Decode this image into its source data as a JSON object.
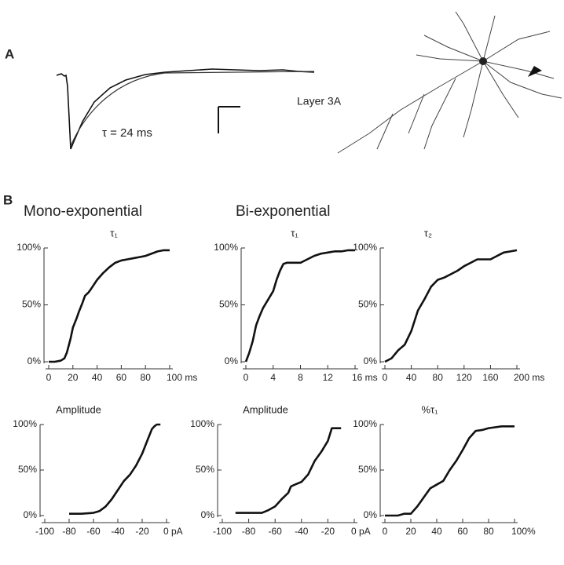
{
  "figure": {
    "panel_a": "A",
    "panel_b": "B",
    "mono_heading": "Mono-exponential",
    "bi_heading": "Bi-exponential",
    "tau_label": "τ = 24 ms",
    "layer_label": "Layer 3A"
  },
  "chart_data": [
    {
      "type": "line",
      "title": "τ₁",
      "color": "#111111",
      "x": [
        0,
        5,
        10,
        13,
        15,
        18,
        20,
        23,
        25,
        28,
        30,
        33,
        35,
        40,
        45,
        50,
        55,
        60,
        65,
        70,
        75,
        80,
        85,
        90,
        95,
        100
      ],
      "series": [
        {
          "values": [
            0,
            0,
            1,
            3,
            8,
            20,
            30,
            38,
            44,
            52,
            58,
            61,
            64,
            72,
            78,
            83,
            87,
            89,
            90,
            91,
            92,
            93,
            95,
            97,
            98,
            98
          ]
        }
      ],
      "xlim": [
        0,
        100
      ],
      "ylim": [
        0,
        100
      ],
      "xticks": [
        0,
        20,
        40,
        60,
        80,
        {
          "value": 100,
          "label": "100 ms"
        }
      ],
      "yticks": [
        {
          "value": 0,
          "label": "0%"
        },
        {
          "value": 50,
          "label": "50%"
        },
        {
          "value": 100,
          "label": "100%"
        }
      ]
    },
    {
      "type": "line",
      "title": "τ₁",
      "color": "#111111",
      "x": [
        0,
        0.5,
        1,
        1.5,
        2,
        2.5,
        3,
        3.5,
        4,
        4.5,
        5,
        5.5,
        6,
        6.5,
        7,
        8,
        9,
        10,
        11,
        12,
        13,
        14,
        15,
        16
      ],
      "series": [
        {
          "values": [
            0,
            8,
            18,
            32,
            40,
            47,
            52,
            57,
            62,
            72,
            80,
            86,
            87,
            87,
            87,
            87,
            90,
            93,
            95,
            96,
            97,
            97,
            98,
            98
          ]
        }
      ],
      "xlim": [
        0,
        16
      ],
      "ylim": [
        0,
        100
      ],
      "xticks": [
        0,
        4,
        8,
        12,
        {
          "value": 16,
          "label": "16 ms"
        }
      ],
      "yticks": [
        {
          "value": 0,
          "label": "0%"
        },
        {
          "value": 50,
          "label": "50%"
        },
        {
          "value": 100,
          "label": "100%"
        }
      ]
    },
    {
      "type": "line",
      "title": "τ₂",
      "color": "#111111",
      "x": [
        0,
        10,
        20,
        30,
        40,
        50,
        60,
        70,
        80,
        90,
        100,
        110,
        120,
        130,
        140,
        150,
        160,
        170,
        180,
        190,
        200
      ],
      "series": [
        {
          "values": [
            0,
            3,
            10,
            15,
            27,
            45,
            55,
            66,
            72,
            74,
            77,
            80,
            84,
            87,
            90,
            90,
            90,
            93,
            96,
            97,
            98
          ]
        }
      ],
      "xlim": [
        0,
        200
      ],
      "ylim": [
        0,
        100
      ],
      "xticks": [
        0,
        40,
        80,
        120,
        160,
        {
          "value": 200,
          "label": "200 ms"
        }
      ],
      "yticks": [
        {
          "value": 0,
          "label": "0%"
        },
        {
          "value": 50,
          "label": "50%"
        },
        {
          "value": 100,
          "label": "100%"
        }
      ]
    },
    {
      "type": "line",
      "title": "Amplitude",
      "color": "#111111",
      "x": [
        -80,
        -70,
        -60,
        -55,
        -50,
        -45,
        -40,
        -35,
        -30,
        -25,
        -20,
        -15,
        -12,
        -10,
        -8,
        -5
      ],
      "series": [
        {
          "values": [
            2,
            2,
            3,
            5,
            10,
            18,
            28,
            38,
            45,
            55,
            68,
            85,
            95,
            98,
            100,
            100
          ]
        }
      ],
      "xlim": [
        -100,
        0
      ],
      "ylim": [
        0,
        100
      ],
      "xticks": [
        -100,
        -80,
        -60,
        -40,
        -20,
        {
          "value": 0,
          "label": "0 pA"
        }
      ],
      "yticks": [
        {
          "value": 0,
          "label": "0%"
        },
        {
          "value": 50,
          "label": "50%"
        },
        {
          "value": 100,
          "label": "100%"
        }
      ]
    },
    {
      "type": "line",
      "title": "Amplitude",
      "color": "#111111",
      "x": [
        -90,
        -80,
        -70,
        -65,
        -60,
        -55,
        -50,
        -48,
        -45,
        -40,
        -35,
        -30,
        -25,
        -20,
        -17,
        -15,
        -10
      ],
      "series": [
        {
          "values": [
            3,
            3,
            3,
            6,
            10,
            18,
            25,
            32,
            34,
            37,
            45,
            60,
            70,
            82,
            96,
            96,
            96
          ]
        }
      ],
      "xlim": [
        -100,
        0
      ],
      "ylim": [
        0,
        100
      ],
      "xticks": [
        -100,
        -80,
        -60,
        -40,
        -20,
        {
          "value": 0,
          "label": "0 pA"
        }
      ],
      "yticks": [
        {
          "value": 0,
          "label": "0%"
        },
        {
          "value": 50,
          "label": "50%"
        },
        {
          "value": 100,
          "label": "100%"
        }
      ]
    },
    {
      "type": "line",
      "title": "%τ₁",
      "color": "#111111",
      "x": [
        0,
        10,
        15,
        20,
        25,
        30,
        35,
        40,
        45,
        50,
        55,
        60,
        65,
        70,
        75,
        80,
        85,
        90,
        100
      ],
      "series": [
        {
          "values": [
            0,
            0,
            2,
            2,
            10,
            20,
            30,
            34,
            38,
            50,
            60,
            72,
            85,
            93,
            94,
            96,
            97,
            98,
            98
          ]
        }
      ],
      "xlim": [
        0,
        100
      ],
      "ylim": [
        0,
        100
      ],
      "xticks": [
        0,
        20,
        40,
        60,
        80,
        {
          "value": 100,
          "label": "100%"
        }
      ],
      "yticks": [
        {
          "value": 0,
          "label": "0%"
        },
        {
          "value": 50,
          "label": "50%"
        },
        {
          "value": 100,
          "label": "100%"
        }
      ]
    }
  ]
}
